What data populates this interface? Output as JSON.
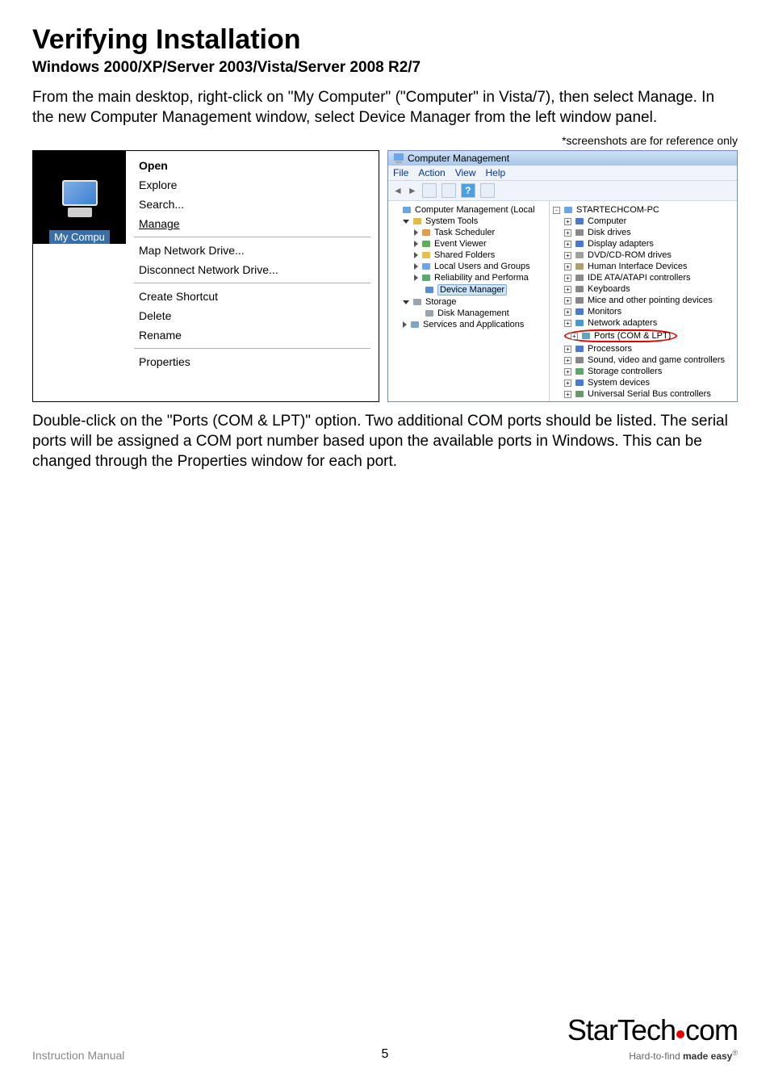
{
  "title": "Verifying Installation",
  "subtitle": "Windows 2000/XP/Server 2003/Vista/Server 2008 R2/7",
  "para1": "From the main desktop, right-click on \"My Computer\" (\"Computer\" in Vista/7), then select Manage. In the new Computer Management window, select Device Manager from the left window panel.",
  "ref_note": "*screenshots are for reference only",
  "context_menu": {
    "icon_label": "My Compu",
    "items": [
      {
        "label": "Open",
        "bold": true
      },
      {
        "label": "Explore"
      },
      {
        "label": "Search..."
      },
      {
        "label": "Manage",
        "underline": true
      },
      {
        "sep": true
      },
      {
        "label": "Map Network Drive..."
      },
      {
        "label": "Disconnect Network Drive..."
      },
      {
        "sep": true
      },
      {
        "label": "Create Shortcut"
      },
      {
        "label": "Delete"
      },
      {
        "label": "Rename"
      },
      {
        "sep": true
      },
      {
        "label": "Properties"
      }
    ]
  },
  "mgmt": {
    "title": "Computer Management",
    "menu": [
      "File",
      "Action",
      "View",
      "Help"
    ],
    "left_tree": [
      {
        "label": "Computer Management (Local",
        "indent": 0,
        "icon_color": "#6aa7e6"
      },
      {
        "label": "System Tools",
        "indent": 1,
        "icon_color": "#e6b84a",
        "expander": "down"
      },
      {
        "label": "Task Scheduler",
        "indent": 2,
        "icon_color": "#e69b4a",
        "expander": "tri"
      },
      {
        "label": "Event Viewer",
        "indent": 2,
        "icon_color": "#5bb05b",
        "expander": "tri"
      },
      {
        "label": "Shared Folders",
        "indent": 2,
        "icon_color": "#e6c04a",
        "expander": "tri"
      },
      {
        "label": "Local Users and Groups",
        "indent": 2,
        "icon_color": "#6aa7e6",
        "expander": "tri"
      },
      {
        "label": "Reliability and Performa",
        "indent": 2,
        "icon_color": "#5aa76a",
        "expander": "tri"
      },
      {
        "label": "Device Manager",
        "indent": 2,
        "icon_color": "#5a8dd2",
        "selected": true
      },
      {
        "label": "Storage",
        "indent": 1,
        "icon_color": "#9aa4ad",
        "expander": "down"
      },
      {
        "label": "Disk Management",
        "indent": 2,
        "icon_color": "#9aa4ad"
      },
      {
        "label": "Services and Applications",
        "indent": 1,
        "icon_color": "#7aa7c6",
        "expander": "tri"
      }
    ],
    "right_tree": [
      {
        "label": "STARTECHCOM-PC",
        "indent": 0,
        "icon_color": "#6aa7e6",
        "expander": "minus"
      },
      {
        "label": "Computer",
        "indent": 1,
        "icon_color": "#4a7ad0",
        "expander": "plus"
      },
      {
        "label": "Disk drives",
        "indent": 1,
        "icon_color": "#8a8a8a",
        "expander": "plus"
      },
      {
        "label": "Display adapters",
        "indent": 1,
        "icon_color": "#4a7ad0",
        "expander": "plus"
      },
      {
        "label": "DVD/CD-ROM drives",
        "indent": 1,
        "icon_color": "#a0a0a0",
        "expander": "plus"
      },
      {
        "label": "Human Interface Devices",
        "indent": 1,
        "icon_color": "#b0a070",
        "expander": "plus"
      },
      {
        "label": "IDE ATA/ATAPI controllers",
        "indent": 1,
        "icon_color": "#8a8a8a",
        "expander": "plus"
      },
      {
        "label": "Keyboards",
        "indent": 1,
        "icon_color": "#888888",
        "expander": "plus"
      },
      {
        "label": "Mice and other pointing devices",
        "indent": 1,
        "icon_color": "#888888",
        "expander": "plus"
      },
      {
        "label": "Monitors",
        "indent": 1,
        "icon_color": "#4a7ad0",
        "expander": "plus"
      },
      {
        "label": "Network adapters",
        "indent": 1,
        "icon_color": "#4a9ad0",
        "expander": "plus"
      },
      {
        "label": "Ports (COM & LPT)",
        "indent": 1,
        "icon_color": "#5aa7c0",
        "expander": "plus",
        "circled": true
      },
      {
        "label": "Processors",
        "indent": 1,
        "icon_color": "#4a7ad0",
        "expander": "plus"
      },
      {
        "label": "Sound, video and game controllers",
        "indent": 1,
        "icon_color": "#888888",
        "expander": "plus"
      },
      {
        "label": "Storage controllers",
        "indent": 1,
        "icon_color": "#5aa76a",
        "expander": "plus"
      },
      {
        "label": "System devices",
        "indent": 1,
        "icon_color": "#4a7ad0",
        "expander": "plus"
      },
      {
        "label": "Universal Serial Bus controllers",
        "indent": 1,
        "icon_color": "#6a9a6a",
        "expander": "plus"
      }
    ]
  },
  "para2": "Double-click on the \"Ports (COM & LPT)\" option. Two additional COM ports should be listed.  The serial ports will be assigned a COM port number based upon the available ports in Windows.  This can be changed through the Properties window for each port.",
  "footer": {
    "left": "Instruction Manual",
    "page": "5",
    "logo_main": "StarTech",
    "logo_suffix": "com",
    "tagline_plain": "Hard-to-find ",
    "tagline_bold": "made easy"
  }
}
